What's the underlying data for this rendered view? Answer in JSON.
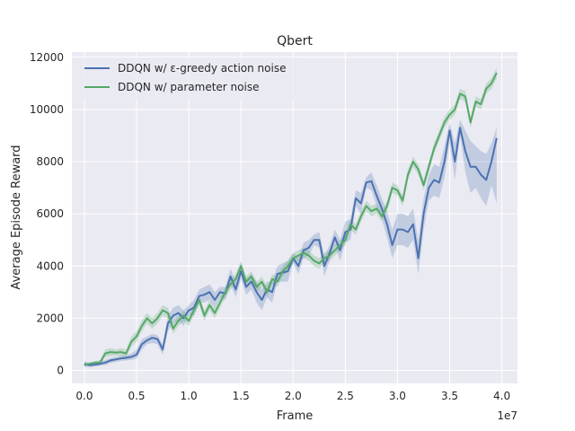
{
  "chart_data": {
    "type": "line",
    "title": "Qbert",
    "xlabel": "Frame",
    "ylabel": "Average Episode Reward",
    "x_offset_label": "1e7",
    "xlim": [
      -1.2,
      41.5
    ],
    "ylim": [
      -500,
      12200
    ],
    "x_ticks": [
      0,
      5,
      10,
      15,
      20,
      25,
      30,
      35,
      40
    ],
    "x_tick_labels": [
      "0.0",
      "0.5",
      "1.0",
      "1.5",
      "2.0",
      "2.5",
      "3.0",
      "3.5",
      "4.0"
    ],
    "y_ticks": [
      0,
      2000,
      4000,
      6000,
      8000,
      10000,
      12000
    ],
    "y_tick_labels": [
      "0",
      "2000",
      "4000",
      "6000",
      "8000",
      "10000",
      "12000"
    ],
    "grid": true,
    "legend_position": "top-left",
    "background_color": "#eaeaf2",
    "series": [
      {
        "name": "DDQN w/ ε-greedy action noise",
        "color": "#4c72b0",
        "x": [
          0,
          0.5,
          1,
          1.5,
          2,
          2.5,
          3,
          3.5,
          4,
          4.5,
          5,
          5.5,
          6,
          6.5,
          7,
          7.5,
          8,
          8.5,
          9,
          9.5,
          10,
          10.5,
          11,
          11.5,
          12,
          12.5,
          13,
          13.5,
          14,
          14.5,
          15,
          15.5,
          16,
          16.5,
          17,
          17.5,
          18,
          18.5,
          19,
          19.5,
          20,
          20.5,
          21,
          21.5,
          22,
          22.5,
          23,
          23.5,
          24,
          24.5,
          25,
          25.5,
          26,
          26.5,
          27,
          27.5,
          28,
          28.5,
          29,
          29.5,
          30,
          30.5,
          31,
          31.5,
          32,
          32.5,
          33,
          33.5,
          34,
          34.5,
          35,
          35.5,
          36,
          36.5,
          37,
          37.5,
          38,
          38.5,
          39,
          39.5
        ],
        "y": [
          250,
          200,
          220,
          250,
          300,
          380,
          420,
          460,
          480,
          520,
          600,
          1000,
          1150,
          1250,
          1200,
          800,
          1800,
          2100,
          2200,
          2000,
          2300,
          2400,
          2850,
          2900,
          3000,
          2700,
          3000,
          2950,
          3600,
          3100,
          3800,
          3200,
          3400,
          3000,
          2700,
          3100,
          3000,
          3700,
          3750,
          3800,
          4300,
          4000,
          4600,
          4700,
          5000,
          5000,
          4000,
          4500,
          5100,
          4600,
          5300,
          5400,
          6600,
          6400,
          7200,
          7250,
          6700,
          6200,
          5600,
          4800,
          5400,
          5400,
          5300,
          5600,
          4300,
          6000,
          7000,
          7300,
          7200,
          8000,
          9200,
          8000,
          9300,
          8400,
          7800,
          7800,
          7500,
          7300,
          8000,
          8900
        ],
        "upper": [
          350,
          300,
          300,
          350,
          400,
          480,
          520,
          560,
          580,
          650,
          800,
          1200,
          1300,
          1400,
          1350,
          1000,
          2100,
          2400,
          2500,
          2300,
          2500,
          2700,
          3100,
          3200,
          3300,
          3000,
          3200,
          3200,
          3900,
          3400,
          4100,
          3500,
          3700,
          3400,
          3100,
          3400,
          3400,
          4000,
          4100,
          4200,
          4500,
          4300,
          4900,
          5000,
          5200,
          5300,
          4400,
          4800,
          5400,
          5000,
          5700,
          5800,
          6900,
          6800,
          7400,
          7600,
          7100,
          6600,
          6100,
          5400,
          6000,
          6000,
          5900,
          6200,
          5000,
          6600,
          7500,
          7900,
          7800,
          8600,
          9500,
          8700,
          9600,
          9200,
          8800,
          8600,
          8400,
          8300,
          8700,
          9300
        ],
        "lower": [
          150,
          120,
          150,
          180,
          200,
          280,
          320,
          360,
          380,
          400,
          450,
          800,
          1000,
          1050,
          1000,
          600,
          1500,
          1800,
          1900,
          1700,
          2100,
          2100,
          2600,
          2600,
          2700,
          2400,
          2800,
          2700,
          3300,
          2800,
          3500,
          2900,
          3100,
          2600,
          2300,
          2800,
          2600,
          3400,
          3400,
          3400,
          4100,
          3700,
          4300,
          4400,
          4800,
          4700,
          3600,
          4200,
          4800,
          4200,
          4900,
          5000,
          6300,
          6000,
          7000,
          6900,
          6300,
          5800,
          5100,
          4300,
          4800,
          4800,
          4700,
          5000,
          3700,
          5400,
          6500,
          6700,
          6600,
          7400,
          8700,
          7300,
          9000,
          7600,
          6800,
          7000,
          6600,
          6300,
          7100,
          6400
        ]
      },
      {
        "name": "DDQN w/ parameter noise",
        "color": "#55a868",
        "x": [
          0,
          0.5,
          1,
          1.5,
          2,
          2.5,
          3,
          3.5,
          4,
          4.5,
          5,
          5.5,
          6,
          6.5,
          7,
          7.5,
          8,
          8.5,
          9,
          9.5,
          10,
          10.5,
          11,
          11.5,
          12,
          12.5,
          13,
          13.5,
          14,
          14.5,
          15,
          15.5,
          16,
          16.5,
          17,
          17.5,
          18,
          18.5,
          19,
          19.5,
          20,
          20.5,
          21,
          21.5,
          22,
          22.5,
          23,
          23.5,
          24,
          24.5,
          25,
          25.5,
          26,
          26.5,
          27,
          27.5,
          28,
          28.5,
          29,
          29.5,
          30,
          30.5,
          31,
          31.5,
          32,
          32.5,
          33,
          33.5,
          34,
          34.5,
          35,
          35.5,
          36,
          36.5,
          37,
          37.5,
          38,
          38.5,
          39,
          39.5
        ],
        "y": [
          200,
          250,
          300,
          300,
          650,
          700,
          680,
          700,
          650,
          1100,
          1300,
          1700,
          2000,
          1800,
          2000,
          2300,
          2200,
          1600,
          1900,
          2100,
          1900,
          2300,
          2700,
          2100,
          2500,
          2200,
          2600,
          3000,
          3300,
          3500,
          4000,
          3400,
          3600,
          3200,
          3400,
          3000,
          3500,
          3400,
          3800,
          4000,
          4300,
          4400,
          4500,
          4400,
          4200,
          4100,
          4300,
          4400,
          4600,
          4800,
          5000,
          5600,
          5400,
          5900,
          6300,
          6100,
          6200,
          5900,
          6300,
          7000,
          6900,
          6500,
          7500,
          8000,
          7700,
          7100,
          7800,
          8500,
          9000,
          9500,
          9800,
          10000,
          10600,
          10500,
          9500,
          10300,
          10200,
          10800,
          11000,
          11400
        ],
        "upper": [
          250,
          300,
          350,
          400,
          800,
          850,
          800,
          850,
          800,
          1300,
          1500,
          1900,
          2200,
          2000,
          2200,
          2500,
          2400,
          1800,
          2100,
          2300,
          2100,
          2500,
          2900,
          2300,
          2700,
          2400,
          2800,
          3200,
          3500,
          3700,
          4200,
          3600,
          3800,
          3400,
          3600,
          3200,
          3700,
          3600,
          4000,
          4200,
          4500,
          4600,
          4700,
          4600,
          4400,
          4300,
          4500,
          4600,
          4800,
          5000,
          5200,
          5800,
          5600,
          6100,
          6500,
          6300,
          6400,
          6100,
          6500,
          7200,
          7100,
          6700,
          7700,
          8200,
          7900,
          7300,
          8000,
          8700,
          9200,
          9700,
          10000,
          10200,
          10800,
          10700,
          9700,
          10500,
          10400,
          11000,
          11200,
          11600
        ],
        "lower": [
          150,
          200,
          250,
          200,
          500,
          550,
          560,
          550,
          500,
          900,
          1100,
          1500,
          1800,
          1600,
          1800,
          2100,
          2000,
          1400,
          1700,
          1900,
          1700,
          2100,
          2500,
          1900,
          2300,
          2000,
          2400,
          2800,
          3100,
          3300,
          3800,
          3200,
          3400,
          3000,
          3200,
          2800,
          3300,
          3200,
          3600,
          3800,
          4100,
          4200,
          4300,
          4200,
          4000,
          3900,
          4100,
          4200,
          4400,
          4600,
          4800,
          5400,
          5200,
          5700,
          6100,
          5900,
          6000,
          5700,
          6100,
          6800,
          6700,
          6300,
          7300,
          7800,
          7500,
          6900,
          7600,
          8300,
          8800,
          9300,
          9600,
          9800,
          10400,
          10300,
          9300,
          10100,
          10000,
          10600,
          10800,
          11200
        ]
      }
    ]
  }
}
